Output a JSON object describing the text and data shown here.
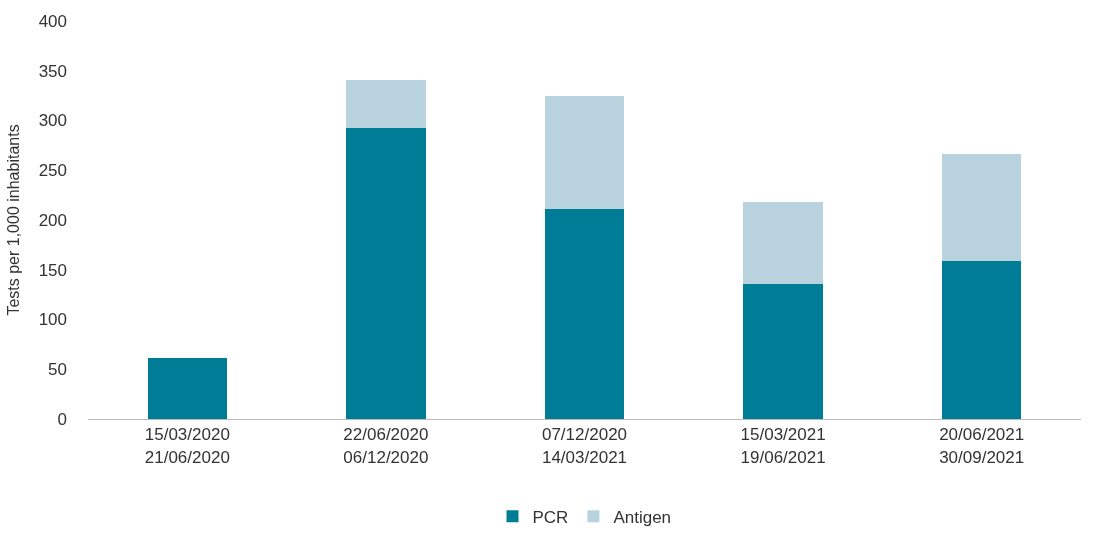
{
  "chart_data": {
    "type": "bar",
    "stacked": true,
    "ylabel": "Tests per 1,000 inhabitants",
    "categories": [
      "15/03/2020\n21/06/2020",
      "22/06/2020\n06/12/2020",
      "07/12/2020\n14/03/2021",
      "15/03/2021\n19/06/2021",
      "20/06/2021\n30/09/2021"
    ],
    "series": [
      {
        "name": "PCR",
        "color": "#007d96",
        "values": [
          61,
          292,
          211,
          136,
          159
        ]
      },
      {
        "name": "Antigen",
        "color": "#b9d3de",
        "values": [
          0,
          49,
          114,
          82,
          107
        ]
      }
    ],
    "ylim": [
      0,
      400
    ],
    "yticks": [
      0,
      50,
      100,
      150,
      200,
      250,
      300,
      350,
      400
    ],
    "legend": "bottom"
  }
}
